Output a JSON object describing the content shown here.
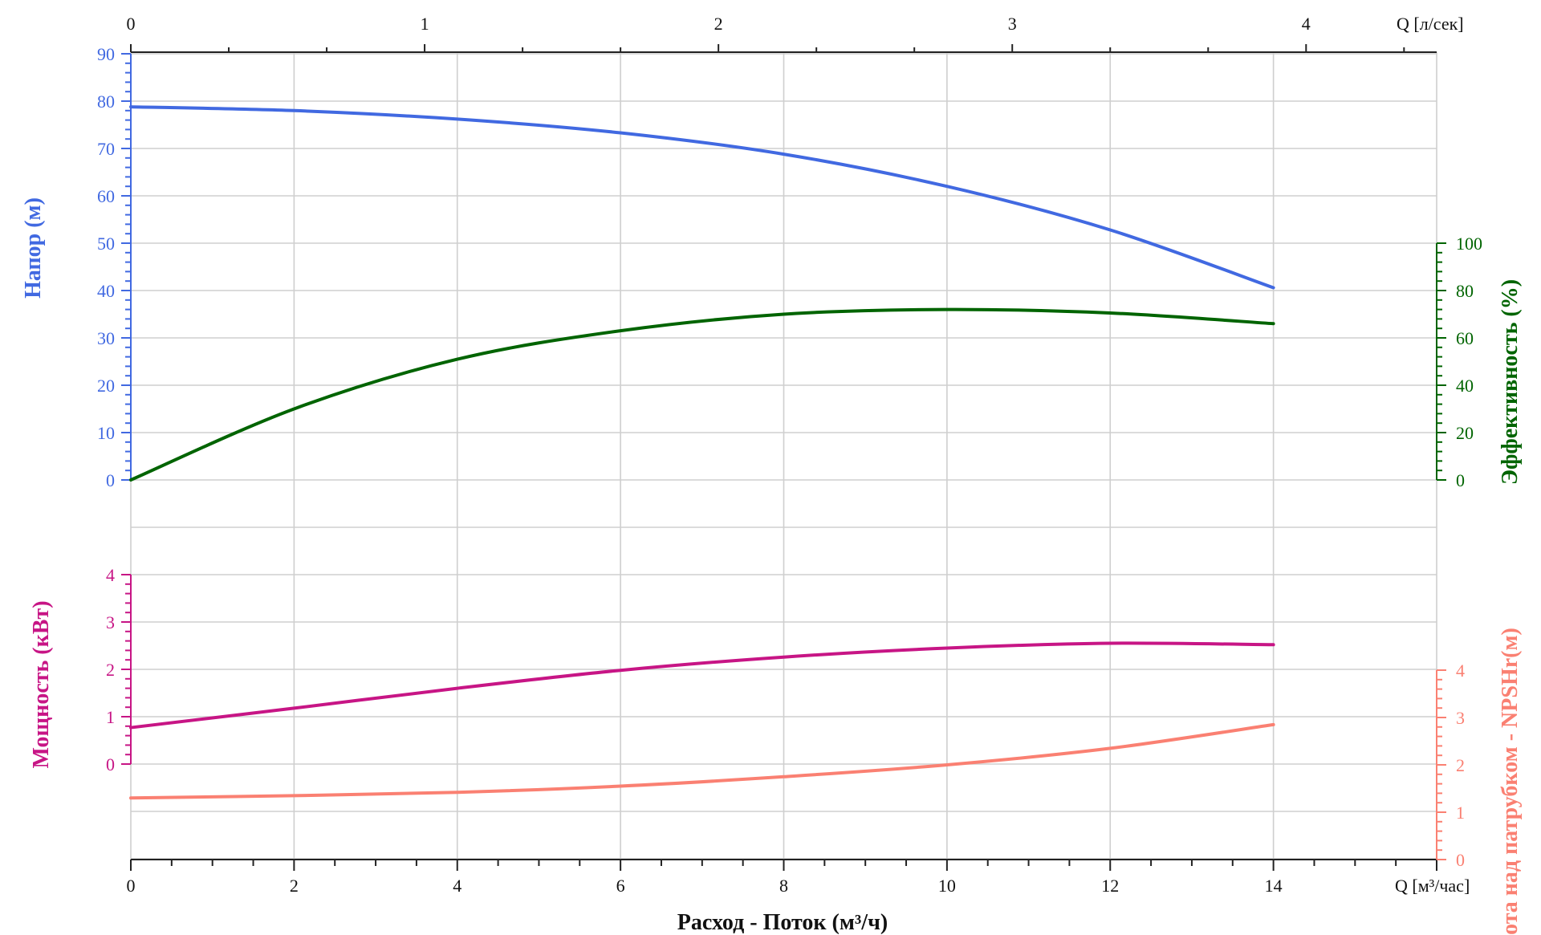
{
  "chart_data": {
    "type": "line",
    "title": "",
    "xlabel": "Расход - Поток (м³/ч)",
    "x_unit_bottom": "Q [м³/час]",
    "x_unit_top": "Q [л/сек]",
    "xlim": [
      0,
      16
    ],
    "x_ticks": [
      "0",
      "2",
      "4",
      "6",
      "8",
      "10",
      "12",
      "14"
    ],
    "x_top_ticks": [
      "0",
      "1",
      "2",
      "3",
      "4"
    ],
    "grid": true,
    "head_axis": {
      "label": "Напор (м)",
      "color": "#4169e1",
      "ylim": [
        0,
        90
      ],
      "ticks": [
        "0",
        "10",
        "20",
        "30",
        "40",
        "50",
        "60",
        "70",
        "80",
        "90"
      ]
    },
    "efficiency_axis": {
      "label": "Эффективность (%)",
      "color": "#006400",
      "ylim": [
        0,
        100
      ],
      "ticks": [
        "0",
        "20",
        "40",
        "60",
        "80",
        "100"
      ]
    },
    "power_axis": {
      "label": "Мощность (кВт)",
      "color": "#c71585",
      "ylim": [
        0,
        4
      ],
      "ticks": [
        "0",
        "1",
        "2",
        "3",
        "4"
      ]
    },
    "npsh_axis": {
      "label": "Высота над патрубком - NPSHr(м)",
      "color": "#fa8072",
      "ylim": [
        0,
        4
      ],
      "ticks": [
        "0",
        "1",
        "2",
        "3",
        "4"
      ]
    },
    "series": [
      {
        "axis": "head",
        "color": "#4169e1",
        "x": [
          0,
          2,
          4,
          6,
          8,
          10,
          12,
          14
        ],
        "y": [
          78.8,
          78.0,
          76.2,
          73.3,
          68.8,
          62.0,
          52.8,
          40.6
        ]
      },
      {
        "axis": "efficiency",
        "color": "#006400",
        "x": [
          0,
          2,
          4,
          6,
          8,
          10,
          12,
          14
        ],
        "y": [
          0,
          30,
          51,
          63,
          70,
          72,
          70.5,
          66
        ]
      },
      {
        "axis": "power",
        "color": "#c71585",
        "x": [
          0,
          2,
          4,
          6,
          8,
          10,
          12,
          14
        ],
        "y": [
          0.77,
          1.18,
          1.6,
          1.98,
          2.26,
          2.45,
          2.55,
          2.52
        ]
      },
      {
        "axis": "npsh",
        "color": "#fa8072",
        "x": [
          0,
          2,
          4,
          6,
          8,
          10,
          12,
          14
        ],
        "y": [
          1.3,
          1.35,
          1.42,
          1.55,
          1.75,
          2.0,
          2.35,
          2.85
        ]
      }
    ]
  }
}
